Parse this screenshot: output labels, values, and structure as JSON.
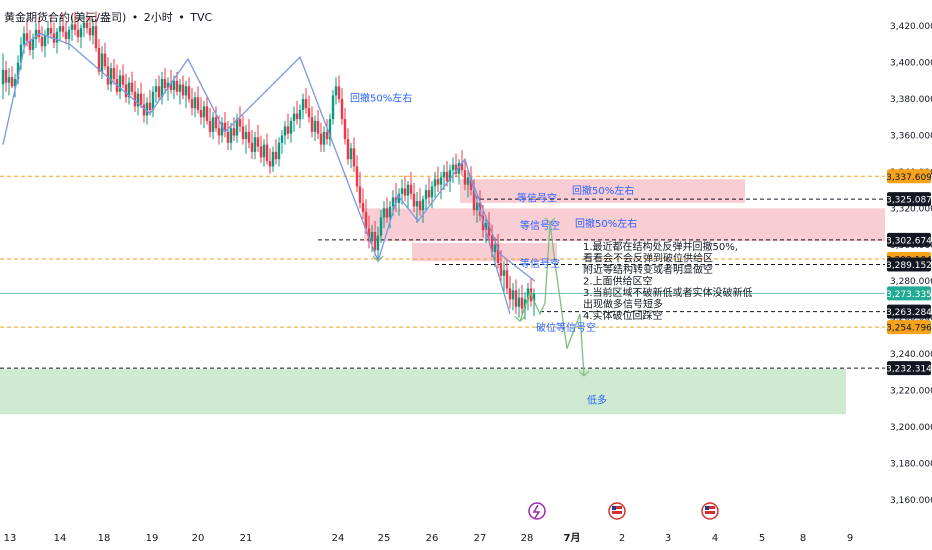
{
  "title": {
    "symbol": "黄金期货合约(美元/盎司)",
    "interval": "2小时",
    "source": "TVC",
    "separator": "•"
  },
  "colors": {
    "up": "#089981",
    "down": "#f23645",
    "wave_blue": "#7b96e2",
    "wave_green": "#7fbf7f",
    "orange_dash": "#f7a21b",
    "black_dash": "#131722",
    "pink_zone": "#f8c8cf",
    "green_zone": "#c9e8cc",
    "current_price": "#22ab94",
    "annotation_blue": "#2962ff"
  },
  "chart_data": {
    "type": "candlestick",
    "y_axis": {
      "range": [
        3150,
        3430
      ],
      "ticks": [
        "3,420.000",
        "3,400.000",
        "3,380.000",
        "3,360.000",
        "3,340.000",
        "3,320.000",
        "3,300.000",
        "3,280.000",
        "3,260.000",
        "3,240.000",
        "3,220.000",
        "3,200.000",
        "3,180.000",
        "3,160.000"
      ]
    },
    "x_axis": {
      "ticks": [
        "13",
        "14",
        "18",
        "19",
        "20",
        "21",
        "24",
        "25",
        "26",
        "27",
        "28",
        "7月",
        "2",
        "3",
        "4",
        "5",
        "8",
        "9"
      ]
    },
    "price_labels": [
      {
        "value": 3337.609,
        "text": "3,337.609",
        "style": "orange"
      },
      {
        "value": 3325.087,
        "text": "3,325.087",
        "style": "black"
      },
      {
        "value": 3302.674,
        "text": "3,302.674",
        "style": "black"
      },
      {
        "value": 3292.184,
        "text": "3,292.184",
        "style": "orange"
      },
      {
        "value": 3289.152,
        "text": "3,289.152",
        "style": "black"
      },
      {
        "value": 3273.335,
        "text": "3,273.335",
        "style": "current"
      },
      {
        "value": 3263.284,
        "text": "3,263.284",
        "style": "black"
      },
      {
        "value": 3254.796,
        "text": "3,254.796",
        "style": "orange"
      },
      {
        "value": 3232.314,
        "text": "3,232.314",
        "style": "black"
      }
    ],
    "zones": [
      {
        "kind": "supply",
        "top": 3336,
        "bottom": 3323,
        "day_from": "27",
        "day_to": "4"
      },
      {
        "kind": "supply",
        "top": 3320,
        "bottom": 3302,
        "day_from": "25",
        "day_to": "9"
      },
      {
        "kind": "supply",
        "top": 3301,
        "bottom": 3291,
        "day_from": "26",
        "day_to": "28"
      },
      {
        "kind": "demand",
        "top": 3232,
        "bottom": 3207,
        "day_from": "13",
        "day_to": "9"
      }
    ],
    "labels": [
      {
        "text": "回撤50%左右",
        "value": 3381
      },
      {
        "text": "等信号空",
        "value": 3326
      },
      {
        "text": "回撤50%左右",
        "value": 3330
      },
      {
        "text": "等信号空",
        "value": 3311
      },
      {
        "text": "回撤50%左右",
        "value": 3312
      },
      {
        "text": "等信号空",
        "value": 3290
      },
      {
        "text": "破位等信号空",
        "value": 3255
      },
      {
        "text": "低多",
        "value": 3215
      }
    ],
    "notes": [
      "1.最近都在结构处反弹并回撤50%,",
      "看看会不会反弹到破位供给区",
      "附近等结构转变或者明显做空",
      "2.上面供给区空",
      "3.当前区域不破新低或者实体没破新低",
      "出现做多信号短多",
      "4.实体破位回踩空"
    ],
    "candles": [
      [
        3,
        3388,
        3405,
        3380,
        3396
      ],
      [
        6,
        3396,
        3401,
        3384,
        3389
      ],
      [
        9,
        3389,
        3397,
        3382,
        3392
      ],
      [
        12,
        3392,
        3398,
        3386,
        3387
      ],
      [
        15,
        3387,
        3394,
        3381,
        3391
      ],
      [
        18,
        3391,
        3404,
        3388,
        3400
      ],
      [
        21,
        3400,
        3414,
        3396,
        3410
      ],
      [
        24,
        3410,
        3420,
        3405,
        3416
      ],
      [
        27,
        3416,
        3424,
        3409,
        3412
      ],
      [
        30,
        3412,
        3418,
        3404,
        3407
      ],
      [
        33,
        3407,
        3416,
        3402,
        3413
      ],
      [
        36,
        3413,
        3422,
        3408,
        3418
      ],
      [
        39,
        3418,
        3425,
        3411,
        3414
      ],
      [
        42,
        3414,
        3420,
        3406,
        3409
      ],
      [
        45,
        3409,
        3418,
        3403,
        3415
      ],
      [
        48,
        3415,
        3423,
        3410,
        3419
      ],
      [
        51,
        3419,
        3426,
        3413,
        3416
      ],
      [
        54,
        3416,
        3422,
        3408,
        3411
      ],
      [
        57,
        3411,
        3419,
        3405,
        3417
      ],
      [
        60,
        3417,
        3425,
        3412,
        3420
      ],
      [
        63,
        3420,
        3427,
        3414,
        3417
      ],
      [
        66,
        3417,
        3423,
        3410,
        3413
      ],
      [
        69,
        3413,
        3420,
        3407,
        3418
      ],
      [
        72,
        3418,
        3426,
        3412,
        3421
      ],
      [
        75,
        3421,
        3428,
        3415,
        3418
      ],
      [
        78,
        3418,
        3424,
        3411,
        3414
      ],
      [
        81,
        3414,
        3421,
        3408,
        3419
      ],
      [
        84,
        3419,
        3427,
        3414,
        3422
      ],
      [
        87,
        3422,
        3428,
        3416,
        3419
      ],
      [
        90,
        3419,
        3425,
        3412,
        3415
      ],
      [
        93,
        3415,
        3424,
        3410,
        3420
      ],
      [
        96,
        3420,
        3428,
        3406,
        3408
      ],
      [
        99,
        3408,
        3413,
        3393,
        3395
      ],
      [
        102,
        3395,
        3409,
        3391,
        3405
      ],
      [
        105,
        3405,
        3411,
        3396,
        3398
      ],
      [
        108,
        3398,
        3403,
        3385,
        3388
      ],
      [
        111,
        3388,
        3400,
        3384,
        3397
      ],
      [
        114,
        3397,
        3402,
        3388,
        3391
      ],
      [
        117,
        3391,
        3399,
        3382,
        3384
      ],
      [
        120,
        3384,
        3396,
        3380,
        3393
      ],
      [
        123,
        3393,
        3399,
        3386,
        3388
      ],
      [
        126,
        3388,
        3394,
        3378,
        3381
      ],
      [
        129,
        3381,
        3392,
        3377,
        3389
      ],
      [
        132,
        3389,
        3395,
        3382,
        3384
      ],
      [
        135,
        3384,
        3390,
        3373,
        3376
      ],
      [
        138,
        3376,
        3386,
        3371,
        3383
      ],
      [
        141,
        3383,
        3389,
        3375,
        3377
      ],
      [
        144,
        3377,
        3383,
        3367,
        3371
      ],
      [
        147,
        3371,
        3381,
        3366,
        3378
      ],
      [
        150,
        3378,
        3385,
        3371,
        3374
      ],
      [
        153,
        3374,
        3387,
        3370,
        3384
      ],
      [
        156,
        3384,
        3391,
        3378,
        3387
      ],
      [
        159,
        3387,
        3393,
        3379,
        3381
      ],
      [
        162,
        3381,
        3395,
        3377,
        3391
      ],
      [
        165,
        3391,
        3397,
        3383,
        3386
      ],
      [
        168,
        3386,
        3392,
        3379,
        3389
      ],
      [
        171,
        3389,
        3396,
        3383,
        3385
      ],
      [
        174,
        3385,
        3393,
        3380,
        3390
      ],
      [
        177,
        3390,
        3395,
        3382,
        3384
      ],
      [
        180,
        3384,
        3391,
        3377,
        3388
      ],
      [
        183,
        3388,
        3393,
        3380,
        3382
      ],
      [
        186,
        3382,
        3390,
        3375,
        3387
      ],
      [
        189,
        3387,
        3392,
        3378,
        3380
      ],
      [
        192,
        3380,
        3386,
        3371,
        3375
      ],
      [
        195,
        3375,
        3384,
        3370,
        3381
      ],
      [
        198,
        3381,
        3387,
        3372,
        3374
      ],
      [
        201,
        3374,
        3381,
        3366,
        3370
      ],
      [
        204,
        3370,
        3379,
        3364,
        3376
      ],
      [
        207,
        3376,
        3382,
        3366,
        3368
      ],
      [
        210,
        3368,
        3375,
        3359,
        3362
      ],
      [
        213,
        3362,
        3373,
        3358,
        3370
      ],
      [
        216,
        3370,
        3376,
        3362,
        3364
      ],
      [
        219,
        3364,
        3371,
        3355,
        3360
      ],
      [
        222,
        3360,
        3370,
        3356,
        3367
      ],
      [
        225,
        3367,
        3373,
        3359,
        3362
      ],
      [
        228,
        3362,
        3368,
        3352,
        3356
      ],
      [
        231,
        3356,
        3367,
        3352,
        3364
      ],
      [
        234,
        3364,
        3370,
        3357,
        3360
      ],
      [
        237,
        3360,
        3372,
        3356,
        3369
      ],
      [
        240,
        3369,
        3376,
        3362,
        3365
      ],
      [
        243,
        3365,
        3371,
        3355,
        3358
      ],
      [
        246,
        3358,
        3366,
        3350,
        3362
      ],
      [
        249,
        3362,
        3369,
        3353,
        3356
      ],
      [
        252,
        3356,
        3363,
        3347,
        3351
      ],
      [
        255,
        3351,
        3362,
        3347,
        3359
      ],
      [
        258,
        3359,
        3366,
        3351,
        3354
      ],
      [
        261,
        3354,
        3360,
        3345,
        3348
      ],
      [
        264,
        3348,
        3358,
        3343,
        3355
      ],
      [
        267,
        3355,
        3361,
        3344,
        3346
      ],
      [
        270,
        3346,
        3353,
        3339,
        3343
      ],
      [
        273,
        3343,
        3354,
        3340,
        3351
      ],
      [
        276,
        3351,
        3358,
        3344,
        3347
      ],
      [
        279,
        3347,
        3359,
        3343,
        3356
      ],
      [
        282,
        3356,
        3363,
        3350,
        3360
      ],
      [
        285,
        3360,
        3368,
        3355,
        3365
      ],
      [
        288,
        3365,
        3372,
        3358,
        3361
      ],
      [
        291,
        3361,
        3370,
        3356,
        3368
      ],
      [
        294,
        3368,
        3376,
        3362,
        3372
      ],
      [
        297,
        3372,
        3379,
        3366,
        3369
      ],
      [
        300,
        3369,
        3377,
        3364,
        3374
      ],
      [
        303,
        3374,
        3383,
        3369,
        3380
      ],
      [
        306,
        3380,
        3386,
        3372,
        3375
      ],
      [
        309,
        3375,
        3382,
        3367,
        3370
      ],
      [
        312,
        3370,
        3376,
        3359,
        3362
      ],
      [
        315,
        3362,
        3371,
        3357,
        3368
      ],
      [
        318,
        3368,
        3374,
        3358,
        3361
      ],
      [
        321,
        3361,
        3367,
        3351,
        3355
      ],
      [
        324,
        3355,
        3365,
        3351,
        3362
      ],
      [
        327,
        3362,
        3369,
        3355,
        3358
      ],
      [
        330,
        3358,
        3372,
        3354,
        3369
      ],
      [
        333,
        3369,
        3385,
        3366,
        3382
      ],
      [
        336,
        3382,
        3392,
        3377,
        3387
      ],
      [
        339,
        3387,
        3393,
        3378,
        3380
      ],
      [
        342,
        3380,
        3386,
        3366,
        3369
      ],
      [
        345,
        3369,
        3375,
        3355,
        3358
      ],
      [
        348,
        3358,
        3364,
        3344,
        3347
      ],
      [
        351,
        3347,
        3356,
        3342,
        3353
      ],
      [
        354,
        3353,
        3359,
        3340,
        3343
      ],
      [
        357,
        3343,
        3349,
        3329,
        3332
      ],
      [
        360,
        3332,
        3340,
        3320,
        3323
      ],
      [
        363,
        3323,
        3331,
        3314,
        3318
      ],
      [
        366,
        3318,
        3325,
        3306,
        3309
      ],
      [
        369,
        3309,
        3316,
        3298,
        3302
      ],
      [
        372,
        3302,
        3311,
        3296,
        3307
      ],
      [
        375,
        3307,
        3313,
        3294,
        3297
      ],
      [
        378,
        3297,
        3310,
        3291,
        3305
      ],
      [
        381,
        3305,
        3319,
        3301,
        3315
      ],
      [
        384,
        3315,
        3324,
        3309,
        3320
      ],
      [
        387,
        3320,
        3326,
        3312,
        3315
      ],
      [
        390,
        3315,
        3324,
        3309,
        3321
      ],
      [
        393,
        3321,
        3330,
        3316,
        3326
      ],
      [
        396,
        3326,
        3334,
        3318,
        3323
      ],
      [
        399,
        3323,
        3331,
        3316,
        3328
      ],
      [
        402,
        3328,
        3336,
        3322,
        3331
      ],
      [
        405,
        3331,
        3338,
        3324,
        3327
      ],
      [
        408,
        3327,
        3335,
        3320,
        3333
      ],
      [
        411,
        3333,
        3340,
        3325,
        3328
      ],
      [
        414,
        3328,
        3334,
        3318,
        3321
      ],
      [
        417,
        3321,
        3329,
        3312,
        3324
      ],
      [
        420,
        3324,
        3331,
        3316,
        3319
      ],
      [
        423,
        3319,
        3327,
        3312,
        3325
      ],
      [
        426,
        3325,
        3333,
        3319,
        3330
      ],
      [
        429,
        3330,
        3337,
        3322,
        3326
      ],
      [
        432,
        3326,
        3335,
        3320,
        3332
      ],
      [
        435,
        3332,
        3340,
        3326,
        3336
      ],
      [
        438,
        3336,
        3343,
        3329,
        3333
      ],
      [
        441,
        3333,
        3340,
        3325,
        3337
      ],
      [
        444,
        3337,
        3344,
        3330,
        3340
      ],
      [
        447,
        3340,
        3346,
        3332,
        3335
      ],
      [
        450,
        3335,
        3344,
        3329,
        3341
      ],
      [
        453,
        3341,
        3348,
        3334,
        3344
      ],
      [
        456,
        3344,
        3350,
        3337,
        3339
      ],
      [
        459,
        3339,
        3347,
        3333,
        3345
      ],
      [
        462,
        3345,
        3352,
        3338,
        3341
      ],
      [
        465,
        3341,
        3347,
        3330,
        3333
      ],
      [
        468,
        3333,
        3341,
        3326,
        3337
      ],
      [
        471,
        3337,
        3343,
        3327,
        3330
      ],
      [
        474,
        3330,
        3336,
        3316,
        3319
      ],
      [
        477,
        3319,
        3327,
        3312,
        3323
      ],
      [
        480,
        3323,
        3330,
        3313,
        3316
      ],
      [
        483,
        3316,
        3322,
        3304,
        3308
      ],
      [
        486,
        3308,
        3316,
        3301,
        3312
      ],
      [
        489,
        3312,
        3318,
        3302,
        3305
      ],
      [
        492,
        3305,
        3311,
        3293,
        3296
      ],
      [
        495,
        3296,
        3304,
        3288,
        3300
      ],
      [
        498,
        3300,
        3306,
        3287,
        3290
      ],
      [
        501,
        3290,
        3297,
        3279,
        3283
      ],
      [
        504,
        3283,
        3291,
        3274,
        3286
      ],
      [
        507,
        3286,
        3292,
        3273,
        3276
      ],
      [
        510,
        3276,
        3283,
        3265,
        3270
      ],
      [
        513,
        3270,
        3279,
        3264,
        3275
      ],
      [
        516,
        3275,
        3281,
        3262,
        3266
      ],
      [
        519,
        3266,
        3276,
        3260,
        3271
      ],
      [
        522,
        3271,
        3278,
        3262,
        3265
      ],
      [
        525,
        3265,
        3274,
        3259,
        3270
      ],
      [
        528,
        3270,
        3279,
        3264,
        3276
      ],
      [
        531,
        3276,
        3282,
        3266,
        3269
      ],
      [
        534,
        3269,
        3276,
        3261,
        3273
      ]
    ],
    "waves": {
      "blue_main": [
        [
          3,
          3355
        ],
        [
          25,
          3410
        ],
        [
          40,
          3416
        ],
        [
          70,
          3410
        ],
        [
          150,
          3372
        ],
        [
          188,
          3402
        ],
        [
          225,
          3362
        ],
        [
          300,
          3403
        ],
        [
          378,
          3291
        ],
        [
          398,
          3327
        ],
        [
          418,
          3313
        ],
        [
          465,
          3347
        ],
        [
          510,
          3262
        ]
      ],
      "blue_right": [
        [
          470,
          3338
        ],
        [
          500,
          3295
        ],
        [
          535,
          3280
        ]
      ],
      "green": [
        [
          520,
          3258
        ],
        [
          530,
          3274
        ],
        [
          540,
          3262
        ],
        [
          545,
          3268
        ],
        [
          550,
          3312
        ],
        [
          555,
          3290
        ],
        [
          567,
          3243
        ],
        [
          580,
          3262
        ],
        [
          584,
          3228
        ]
      ]
    }
  }
}
